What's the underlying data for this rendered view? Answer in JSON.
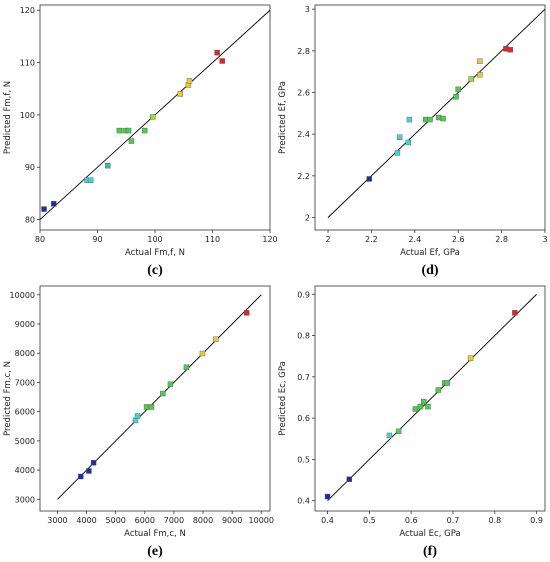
{
  "chart_data": [
    {
      "type": "scatter",
      "panel_label": "(c)",
      "xlabel": "Actual Fm,f, N",
      "ylabel": "Predicted Fm,f, N",
      "xlim": [
        80,
        120
      ],
      "ylim": [
        78,
        121
      ],
      "xticks": [
        "80",
        "90",
        "100",
        "110",
        "120"
      ],
      "yticks": [
        "80",
        "90",
        "100",
        "110",
        "120"
      ],
      "xtick_values": [
        80,
        90,
        100,
        110,
        120
      ],
      "ytick_values": [
        80,
        90,
        100,
        110,
        120
      ],
      "diagonal": [
        80,
        120
      ],
      "points": [
        {
          "x": 80.7,
          "y": 82.0,
          "color": "#1c2f9e"
        },
        {
          "x": 82.4,
          "y": 83.0,
          "color": "#1c2f9e"
        },
        {
          "x": 88.2,
          "y": 87.5,
          "color": "#3fd6d6"
        },
        {
          "x": 88.8,
          "y": 87.5,
          "color": "#3fd6d6"
        },
        {
          "x": 91.8,
          "y": 90.3,
          "color": "#2fc0a0"
        },
        {
          "x": 93.8,
          "y": 97.0,
          "color": "#4ecc4e"
        },
        {
          "x": 94.8,
          "y": 97.0,
          "color": "#4ecc4e"
        },
        {
          "x": 95.4,
          "y": 97.0,
          "color": "#4ecc4e"
        },
        {
          "x": 95.9,
          "y": 95.0,
          "color": "#4ecc4e"
        },
        {
          "x": 98.2,
          "y": 97.0,
          "color": "#4ecc4e"
        },
        {
          "x": 99.6,
          "y": 99.6,
          "color": "#8fe03a"
        },
        {
          "x": 104.4,
          "y": 104.0,
          "color": "#e8c83c"
        },
        {
          "x": 105.8,
          "y": 105.7,
          "color": "#e8c83c"
        },
        {
          "x": 106.0,
          "y": 106.5,
          "color": "#e8c83c"
        },
        {
          "x": 110.8,
          "y": 111.9,
          "color": "#d42a2a"
        },
        {
          "x": 111.7,
          "y": 110.3,
          "color": "#d42a2a"
        }
      ]
    },
    {
      "type": "scatter",
      "panel_label": "(d)",
      "xlabel": "Actual Ef, GPa",
      "ylabel": "Predicted Ef, GPa",
      "xlim": [
        1.94,
        3.0
      ],
      "ylim": [
        1.94,
        3.02
      ],
      "xticks": [
        "2",
        "2.2",
        "2.4",
        "2.6",
        "2.8",
        "3"
      ],
      "yticks": [
        "2",
        "2.2",
        "2.4",
        "2.6",
        "2.8",
        "3"
      ],
      "xtick_values": [
        2,
        2.2,
        2.4,
        2.6,
        2.8,
        3
      ],
      "ytick_values": [
        2,
        2.2,
        2.4,
        2.6,
        2.8,
        3
      ],
      "diagonal": [
        2,
        3
      ],
      "points": [
        {
          "x": 2.19,
          "y": 2.185,
          "color": "#1c2f9e"
        },
        {
          "x": 2.32,
          "y": 2.31,
          "color": "#3fd6d6"
        },
        {
          "x": 2.33,
          "y": 2.385,
          "color": "#3fd6d6"
        },
        {
          "x": 2.37,
          "y": 2.36,
          "color": "#3fd6d6"
        },
        {
          "x": 2.375,
          "y": 2.47,
          "color": "#3fd6d6"
        },
        {
          "x": 2.45,
          "y": 2.47,
          "color": "#4ecc4e"
        },
        {
          "x": 2.47,
          "y": 2.47,
          "color": "#4ecc4e"
        },
        {
          "x": 2.51,
          "y": 2.48,
          "color": "#4ecc4e"
        },
        {
          "x": 2.53,
          "y": 2.475,
          "color": "#4ecc4e"
        },
        {
          "x": 2.59,
          "y": 2.58,
          "color": "#4ecc4e"
        },
        {
          "x": 2.6,
          "y": 2.615,
          "color": "#4ecc4e"
        },
        {
          "x": 2.66,
          "y": 2.665,
          "color": "#8fe03a"
        },
        {
          "x": 2.7,
          "y": 2.685,
          "color": "#e8c83c"
        },
        {
          "x": 2.7,
          "y": 2.75,
          "color": "#e8c83c"
        },
        {
          "x": 2.82,
          "y": 2.81,
          "color": "#d42a2a"
        },
        {
          "x": 2.84,
          "y": 2.805,
          "color": "#d42a2a"
        }
      ]
    },
    {
      "type": "scatter",
      "panel_label": "(e)",
      "xlabel": "Actual Fm,c, N",
      "ylabel": "Predicted Fm,c, N",
      "xlim": [
        2400,
        10300
      ],
      "ylim": [
        2600,
        10300
      ],
      "xticks": [
        "3000",
        "4000",
        "5000",
        "6000",
        "7000",
        "8000",
        "9000",
        "10000"
      ],
      "yticks": [
        "3000",
        "4000",
        "5000",
        "6000",
        "7000",
        "8000",
        "9000",
        "10000"
      ],
      "xtick_values": [
        3000,
        4000,
        5000,
        6000,
        7000,
        8000,
        9000,
        10000
      ],
      "ytick_values": [
        3000,
        4000,
        5000,
        6000,
        7000,
        8000,
        9000,
        10000
      ],
      "diagonal": [
        3000,
        10000
      ],
      "points": [
        {
          "x": 3800,
          "y": 3780,
          "color": "#1c2f9e"
        },
        {
          "x": 4080,
          "y": 3970,
          "color": "#1c2f9e"
        },
        {
          "x": 4240,
          "y": 4250,
          "color": "#1c2f9e"
        },
        {
          "x": 5680,
          "y": 5700,
          "color": "#3fd6d6"
        },
        {
          "x": 5750,
          "y": 5850,
          "color": "#3fd6d6"
        },
        {
          "x": 6060,
          "y": 6160,
          "color": "#4ecc4e"
        },
        {
          "x": 6230,
          "y": 6160,
          "color": "#4ecc4e"
        },
        {
          "x": 6620,
          "y": 6620,
          "color": "#4ecc4e"
        },
        {
          "x": 6880,
          "y": 6940,
          "color": "#4ecc4e"
        },
        {
          "x": 7430,
          "y": 7520,
          "color": "#4ecc4e"
        },
        {
          "x": 7980,
          "y": 7990,
          "color": "#e8c83c"
        },
        {
          "x": 8440,
          "y": 8480,
          "color": "#e8c83c"
        },
        {
          "x": 9500,
          "y": 9380,
          "color": "#d42a2a"
        }
      ]
    },
    {
      "type": "scatter",
      "panel_label": "(f)",
      "xlabel": "Actual Ec, GPa",
      "ylabel": "Predicted Ec, GPa",
      "xlim": [
        0.37,
        0.92
      ],
      "ylim": [
        0.375,
        0.92
      ],
      "xticks": [
        "0.4",
        "0.5",
        "0.6",
        "0.7",
        "0.8",
        "0.9"
      ],
      "yticks": [
        "0.4",
        "0.5",
        "0.6",
        "0.7",
        "0.8",
        "0.9"
      ],
      "xtick_values": [
        0.4,
        0.5,
        0.6,
        0.7,
        0.8,
        0.9
      ],
      "ytick_values": [
        0.4,
        0.5,
        0.6,
        0.7,
        0.8,
        0.9
      ],
      "diagonal": [
        0.4,
        0.9
      ],
      "points": [
        {
          "x": 0.4,
          "y": 0.41,
          "color": "#1c2f9e"
        },
        {
          "x": 0.452,
          "y": 0.452,
          "color": "#1c2f9e"
        },
        {
          "x": 0.548,
          "y": 0.558,
          "color": "#3fd6d6"
        },
        {
          "x": 0.57,
          "y": 0.568,
          "color": "#4ecc4e"
        },
        {
          "x": 0.61,
          "y": 0.622,
          "color": "#4ecc4e"
        },
        {
          "x": 0.622,
          "y": 0.628,
          "color": "#4ecc4e"
        },
        {
          "x": 0.63,
          "y": 0.64,
          "color": "#4ecc4e"
        },
        {
          "x": 0.64,
          "y": 0.628,
          "color": "#4ecc4e"
        },
        {
          "x": 0.665,
          "y": 0.668,
          "color": "#4ecc4e"
        },
        {
          "x": 0.68,
          "y": 0.685,
          "color": "#4ecc4e"
        },
        {
          "x": 0.686,
          "y": 0.685,
          "color": "#4ecc4e"
        },
        {
          "x": 0.742,
          "y": 0.745,
          "color": "#e8c83c"
        },
        {
          "x": 0.848,
          "y": 0.855,
          "color": "#d42a2a"
        }
      ]
    }
  ]
}
